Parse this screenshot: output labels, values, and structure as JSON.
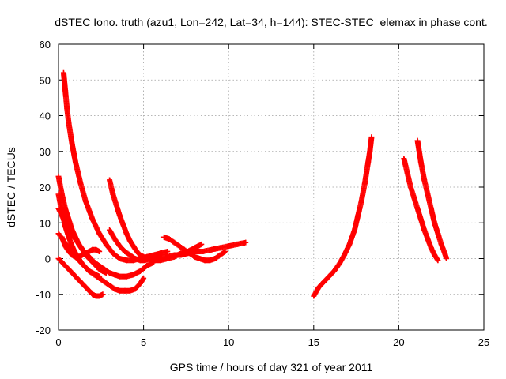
{
  "chart_data": {
    "type": "scatter",
    "title": "dSTEC Iono. truth (azu1, Lon=242, Lat=34, h=144): STEC-STEC_elemax in phase cont.",
    "xlabel": "GPS time / hours of day 321 of year 2011",
    "ylabel": "dSTEC  / TECUs",
    "xlim": [
      0,
      25
    ],
    "ylim": [
      -20,
      60
    ],
    "xticks": [
      0,
      5,
      10,
      15,
      20,
      25
    ],
    "yticks": [
      -20,
      -10,
      0,
      10,
      20,
      30,
      40,
      50,
      60
    ],
    "xtick_labels": [
      "0",
      "5",
      "10",
      "15",
      "20",
      "25"
    ],
    "ytick_labels": [
      "-20",
      "-10",
      "0",
      "10",
      "20",
      "30",
      "40",
      "50",
      "60"
    ],
    "grid": true,
    "marker": "+",
    "color": "#ff0000",
    "series": [
      {
        "x": [
          0.3,
          0.4,
          0.5,
          0.6,
          0.8,
          1.0,
          1.3,
          1.6,
          2.0,
          2.4,
          2.8,
          3.2,
          3.6,
          4.0,
          4.4,
          4.8,
          5.2,
          5.6,
          6.0,
          6.4
        ],
        "y": [
          52,
          47,
          42,
          38,
          32,
          27,
          21,
          16,
          11,
          7,
          4,
          1.5,
          0,
          -0.5,
          -0.5,
          0,
          0.5,
          1,
          1.5,
          2
        ]
      },
      {
        "x": [
          0.0,
          0.2,
          0.4,
          0.6,
          0.8,
          1.0,
          1.2,
          1.4,
          1.6,
          1.8,
          2.0,
          2.2,
          2.4,
          2.6,
          2.8
        ],
        "y": [
          23,
          18,
          14,
          11,
          8,
          6,
          4,
          2.5,
          1,
          0,
          -1,
          -2,
          -3,
          -3.5,
          -4
        ]
      },
      {
        "x": [
          0.0,
          0.2,
          0.4,
          0.6,
          0.8,
          1.0,
          1.2,
          1.4,
          1.6,
          1.8,
          2.0,
          2.2,
          2.4
        ],
        "y": [
          18,
          13,
          9,
          6,
          3.5,
          1.5,
          0,
          -1.5,
          -2.5,
          -3.5,
          -4,
          -4.5,
          -5
        ]
      },
      {
        "x": [
          0.0,
          0.3,
          0.6,
          0.9,
          1.2,
          1.5,
          1.8,
          2.1,
          2.4,
          2.7,
          3.0,
          3.3,
          3.6,
          4.0,
          4.4,
          4.8,
          5.2,
          5.6
        ],
        "y": [
          14,
          11,
          8.5,
          6,
          4,
          2,
          0.5,
          -1,
          -2,
          -3,
          -4,
          -4.5,
          -5,
          -5,
          -4.5,
          -3.5,
          -2,
          -1
        ]
      },
      {
        "x": [
          0.0,
          0.3,
          0.6,
          0.9,
          1.2,
          1.5,
          1.8,
          2.1,
          2.4,
          2.7,
          3.0,
          3.3,
          3.6,
          3.9,
          4.2,
          4.5,
          4.8,
          5.0
        ],
        "y": [
          7,
          5,
          3,
          1,
          -0.5,
          -2,
          -3.5,
          -4.5,
          -5.5,
          -6.5,
          -7.5,
          -8.5,
          -9,
          -9,
          -9,
          -8.5,
          -7,
          -5.5
        ]
      },
      {
        "x": [
          0.0,
          0.2,
          0.4,
          0.6,
          0.8,
          1.0,
          1.2,
          1.4,
          1.6,
          1.8,
          2.0,
          2.2,
          2.4,
          2.6
        ],
        "y": [
          0,
          -1,
          -2,
          -3,
          -4,
          -5,
          -6,
          -7,
          -8,
          -9,
          -10,
          -10.5,
          -10.5,
          -10
        ]
      },
      {
        "x": [
          0.2,
          0.4,
          0.6,
          0.8,
          1.0,
          1.2,
          1.4,
          1.6,
          1.8,
          2.0,
          2.2,
          2.4
        ],
        "y": [
          6,
          3.5,
          2,
          1,
          0.5,
          0.5,
          1,
          1.5,
          2,
          2.5,
          2.5,
          2
        ]
      },
      {
        "x": [
          3.0,
          3.2,
          3.4,
          3.6,
          3.8,
          4.0,
          4.2,
          4.4,
          4.6,
          4.8,
          5.0,
          5.3,
          5.6,
          6.0,
          6.4,
          6.8,
          7.2,
          7.6,
          8.0,
          8.4
        ],
        "y": [
          22,
          18,
          15,
          12,
          9.5,
          7,
          5,
          3.5,
          2,
          1,
          0.5,
          0,
          -0.5,
          -0.5,
          0,
          0.5,
          1.5,
          2,
          3,
          4
        ]
      },
      {
        "x": [
          3.0,
          3.3,
          3.6,
          3.9,
          4.2,
          4.5,
          4.8,
          5.1,
          5.4,
          5.7,
          6.0,
          6.4,
          6.8,
          7.2,
          7.6,
          8.0,
          8.5,
          9.0,
          9.5,
          10.0,
          10.5,
          11.0
        ],
        "y": [
          8,
          5.5,
          3.5,
          2,
          1,
          0,
          -0.5,
          -0.5,
          0,
          0,
          0.5,
          0.5,
          1,
          1,
          1.5,
          2,
          2,
          2.5,
          3,
          3.5,
          4,
          4.5
        ]
      },
      {
        "x": [
          6.2,
          6.5,
          6.8,
          7.1,
          7.4,
          7.7,
          8.0,
          8.3,
          8.6,
          8.9,
          9.2,
          9.5,
          9.8
        ],
        "y": [
          6,
          5.5,
          4.5,
          3.5,
          2.5,
          1.5,
          0.5,
          0,
          -0.5,
          -0.5,
          0,
          1,
          2
        ]
      },
      {
        "x": [
          15.0,
          15.3,
          15.6,
          15.9,
          16.2,
          16.5,
          16.8,
          17.1,
          17.4,
          17.6,
          17.8,
          18.0,
          18.1,
          18.2,
          18.3,
          18.4
        ],
        "y": [
          -10.5,
          -8,
          -6.5,
          -5,
          -3.5,
          -1.5,
          1,
          4,
          8,
          12,
          16,
          21,
          24,
          27,
          30,
          34
        ]
      },
      {
        "x": [
          20.3,
          20.5,
          20.7,
          20.9,
          21.1,
          21.3,
          21.5,
          21.7,
          21.9,
          22.1,
          22.3
        ],
        "y": [
          28,
          24,
          20,
          17,
          14,
          11,
          8,
          5.5,
          3,
          1,
          -0.5
        ]
      },
      {
        "x": [
          21.1,
          21.3,
          21.5,
          21.7,
          21.9,
          22.1,
          22.3,
          22.5,
          22.7,
          22.8
        ],
        "y": [
          33,
          27,
          22,
          18,
          14,
          10,
          7,
          4,
          1.5,
          0
        ]
      }
    ]
  }
}
